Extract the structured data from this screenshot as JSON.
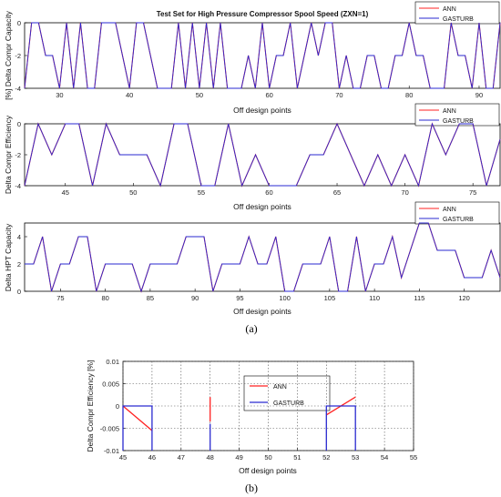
{
  "captions": {
    "top": "(a)",
    "bottom": "(b)"
  },
  "chart_data": [
    {
      "type": "line",
      "title": "Test Set for High Pressure Compressor Spool Speed (ZXN=1)",
      "xlabel": "Off design points",
      "ylabel": "[%] Delta Compr Capacity",
      "xlim": [
        25,
        93
      ],
      "ylim": [
        -4,
        0
      ],
      "xticks": [
        30,
        40,
        50,
        60,
        70,
        80,
        90
      ],
      "yticks": [
        -4,
        -2,
        0
      ],
      "grid": false,
      "legend_position": "top-right",
      "legend": [
        "ANN",
        "GASTURB"
      ],
      "colors": {
        "ANN": "#ff2020",
        "GASTURB": "#2a2ad0"
      },
      "series": [
        {
          "name": "ANN",
          "x": [
            25,
            26,
            27,
            28,
            29,
            30,
            31,
            32,
            33,
            34,
            35,
            36,
            37,
            38,
            39,
            40,
            41,
            42,
            43,
            44,
            45,
            46,
            47,
            48,
            49,
            50,
            51,
            52,
            53,
            54,
            55,
            56,
            57,
            58,
            59,
            60,
            61,
            62,
            63,
            64,
            65,
            66,
            67,
            68,
            69,
            70,
            71,
            72,
            73,
            74,
            75,
            76,
            77,
            78,
            79,
            80,
            81,
            82,
            83,
            84,
            85,
            86,
            87,
            88,
            89,
            90,
            91,
            92,
            93
          ],
          "y": [
            -4,
            0,
            0,
            -2,
            -2,
            -4,
            0,
            -4,
            0,
            -4,
            -4,
            0,
            0,
            0,
            -2,
            -4,
            0,
            0,
            -2,
            -4,
            -4,
            -4,
            0,
            -4,
            0,
            -4,
            0,
            -4,
            0,
            -4,
            -4,
            -4,
            -2,
            -4,
            0,
            -4,
            -2,
            -2,
            0,
            -4,
            -2,
            0,
            -2,
            0,
            0,
            -4,
            -2,
            -4,
            -4,
            -2,
            -2,
            -4,
            -4,
            -2,
            -2,
            0,
            -2,
            -2,
            -4,
            -4,
            -4,
            0,
            -2,
            -2,
            -4,
            0,
            -4,
            -4,
            0
          ]
        },
        {
          "name": "GASTURB",
          "x": [
            25,
            26,
            27,
            28,
            29,
            30,
            31,
            32,
            33,
            34,
            35,
            36,
            37,
            38,
            39,
            40,
            41,
            42,
            43,
            44,
            45,
            46,
            47,
            48,
            49,
            50,
            51,
            52,
            53,
            54,
            55,
            56,
            57,
            58,
            59,
            60,
            61,
            62,
            63,
            64,
            65,
            66,
            67,
            68,
            69,
            70,
            71,
            72,
            73,
            74,
            75,
            76,
            77,
            78,
            79,
            80,
            81,
            82,
            83,
            84,
            85,
            86,
            87,
            88,
            89,
            90,
            91,
            92,
            93
          ],
          "y": [
            -4,
            0,
            0,
            -2,
            -2,
            -4,
            0,
            -4,
            0,
            -4,
            -4,
            0,
            0,
            0,
            -2,
            -4,
            0,
            0,
            -2,
            -4,
            -4,
            -4,
            0,
            -4,
            0,
            -4,
            0,
            -4,
            0,
            -4,
            -4,
            -4,
            -2,
            -4,
            0,
            -4,
            -2,
            -2,
            0,
            -4,
            -2,
            0,
            -2,
            0,
            0,
            -4,
            -2,
            -4,
            -4,
            -2,
            -2,
            -4,
            -4,
            -2,
            -2,
            0,
            -2,
            -2,
            -4,
            -4,
            -4,
            0,
            -2,
            -2,
            -4,
            0,
            -4,
            -4,
            0
          ]
        }
      ]
    },
    {
      "type": "line",
      "title": "",
      "xlabel": "Off design points",
      "ylabel": "Delta Compr Efficiency",
      "xlim": [
        42,
        77
      ],
      "ylim": [
        -4,
        0
      ],
      "xticks": [
        45,
        50,
        55,
        60,
        65,
        70,
        75
      ],
      "yticks": [
        -4,
        -2,
        0
      ],
      "grid": false,
      "legend_position": "top-right",
      "legend": [
        "ANN",
        "GASTURB"
      ],
      "colors": {
        "ANN": "#ff2020",
        "GASTURB": "#2a2ad0"
      },
      "series": [
        {
          "name": "ANN",
          "x": [
            42,
            43,
            44,
            45,
            46,
            47,
            48,
            49,
            50,
            51,
            52,
            53,
            54,
            55,
            56,
            57,
            58,
            59,
            60,
            61,
            62,
            63,
            64,
            65,
            66,
            67,
            68,
            69,
            70,
            71,
            72,
            73,
            74,
            75,
            76,
            77
          ],
          "y": [
            -4,
            0,
            -2,
            0,
            0,
            -4,
            0,
            -2,
            -2,
            -2,
            -4,
            0,
            0,
            -4,
            -4,
            0,
            -4,
            -2,
            -4,
            -4,
            -4,
            -2,
            -2,
            0,
            -2,
            -4,
            -2,
            -4,
            -2,
            -4,
            0,
            -2,
            0,
            0,
            -4,
            -1
          ]
        },
        {
          "name": "GASTURB",
          "x": [
            42,
            43,
            44,
            45,
            46,
            47,
            48,
            49,
            50,
            51,
            52,
            53,
            54,
            55,
            56,
            57,
            58,
            59,
            60,
            61,
            62,
            63,
            64,
            65,
            66,
            67,
            68,
            69,
            70,
            71,
            72,
            73,
            74,
            75,
            76,
            77
          ],
          "y": [
            -4,
            0,
            -2,
            0,
            0,
            -4,
            0,
            -2,
            -2,
            -2,
            -4,
            0,
            0,
            -4,
            -4,
            0,
            -4,
            -2,
            -4,
            -4,
            -4,
            -2,
            -2,
            0,
            -2,
            -4,
            -2,
            -4,
            -2,
            -4,
            0,
            -2,
            0,
            0,
            -4,
            -1
          ]
        }
      ]
    },
    {
      "type": "line",
      "title": "",
      "xlabel": "Off design points",
      "ylabel": "Delta HPT Capacity",
      "xlim": [
        71,
        124
      ],
      "ylim": [
        0,
        5
      ],
      "xticks": [
        75,
        80,
        85,
        90,
        95,
        100,
        105,
        110,
        115,
        120
      ],
      "yticks": [
        0,
        2,
        4
      ],
      "grid": false,
      "legend_position": "top-right",
      "legend": [
        "ANN",
        "GASTURB"
      ],
      "colors": {
        "ANN": "#ff2020",
        "GASTURB": "#2a2ad0"
      },
      "series": [
        {
          "name": "ANN",
          "x": [
            71,
            72,
            73,
            74,
            75,
            76,
            77,
            78,
            79,
            80,
            81,
            82,
            83,
            84,
            85,
            86,
            87,
            88,
            89,
            90,
            91,
            92,
            93,
            94,
            95,
            96,
            97,
            98,
            99,
            100,
            101,
            102,
            103,
            104,
            105,
            106,
            107,
            108,
            109,
            110,
            111,
            112,
            113,
            114,
            115,
            116,
            117,
            118,
            119,
            120,
            121,
            122,
            123,
            124
          ],
          "y": [
            2,
            2,
            4,
            0,
            2,
            2,
            4,
            4,
            0,
            2,
            2,
            2,
            2,
            0,
            2,
            2,
            2,
            2,
            4,
            4,
            4,
            0,
            2,
            2,
            2,
            4,
            2,
            2,
            4,
            0,
            0,
            2,
            2,
            2,
            4,
            0,
            0,
            4,
            0,
            2,
            2,
            4,
            1,
            3,
            5,
            5,
            3,
            3,
            3,
            1,
            1,
            1,
            3,
            1
          ]
        },
        {
          "name": "GASTURB",
          "x": [
            71,
            72,
            73,
            74,
            75,
            76,
            77,
            78,
            79,
            80,
            81,
            82,
            83,
            84,
            85,
            86,
            87,
            88,
            89,
            90,
            91,
            92,
            93,
            94,
            95,
            96,
            97,
            98,
            99,
            100,
            101,
            102,
            103,
            104,
            105,
            106,
            107,
            108,
            109,
            110,
            111,
            112,
            113,
            114,
            115,
            116,
            117,
            118,
            119,
            120,
            121,
            122,
            123,
            124
          ],
          "y": [
            2,
            2,
            4,
            0,
            2,
            2,
            4,
            4,
            0,
            2,
            2,
            2,
            2,
            0,
            2,
            2,
            2,
            2,
            4,
            4,
            4,
            0,
            2,
            2,
            2,
            4,
            2,
            2,
            4,
            0,
            0,
            2,
            2,
            2,
            4,
            0,
            0,
            4,
            0,
            2,
            2,
            4,
            1,
            3,
            5,
            5,
            3,
            3,
            3,
            1,
            1,
            1,
            3,
            1
          ]
        }
      ]
    },
    {
      "type": "line",
      "title": "",
      "xlabel": "Off design points",
      "ylabel": "Delta Compr Efficiency [%]",
      "xlim": [
        45,
        55
      ],
      "ylim": [
        -0.01,
        0.01
      ],
      "xticks": [
        45,
        46,
        47,
        48,
        49,
        50,
        51,
        52,
        53,
        54,
        55
      ],
      "xticklabels": [
        "45",
        "46",
        "47",
        "48",
        "49",
        "50",
        "51",
        "52",
        "53",
        "54",
        "55"
      ],
      "yticks": [
        -0.01,
        -0.005,
        0,
        0.005,
        0.01
      ],
      "yticklabels": [
        "-0.01",
        "-0.005",
        "0",
        "0.005",
        "0.01"
      ],
      "grid": true,
      "legend_position": "top-center",
      "legend": [
        "ANN",
        "GASTURB"
      ],
      "colors": {
        "ANN": "#ff2020",
        "GASTURB": "#2a2ad0"
      },
      "series": [
        {
          "name": "ANN",
          "segments": [
            [
              [
                45,
                0
              ],
              [
                46,
                -0.0055
              ]
            ],
            [
              [
                48,
                0.002
              ],
              [
                48,
                -0.0035
              ]
            ],
            [
              [
                52,
                -0.002
              ],
              [
                53,
                0.002
              ]
            ]
          ]
        },
        {
          "name": "GASTURB",
          "segments": [
            [
              [
                45,
                -0.01
              ],
              [
                45,
                0
              ],
              [
                46,
                0
              ],
              [
                46,
                -0.01
              ]
            ],
            [
              [
                48,
                -0.01
              ],
              [
                48,
                -0.004
              ]
            ],
            [
              [
                52,
                -0.01
              ],
              [
                52,
                0
              ],
              [
                53,
                0
              ],
              [
                53,
                -0.01
              ]
            ]
          ]
        }
      ]
    }
  ]
}
